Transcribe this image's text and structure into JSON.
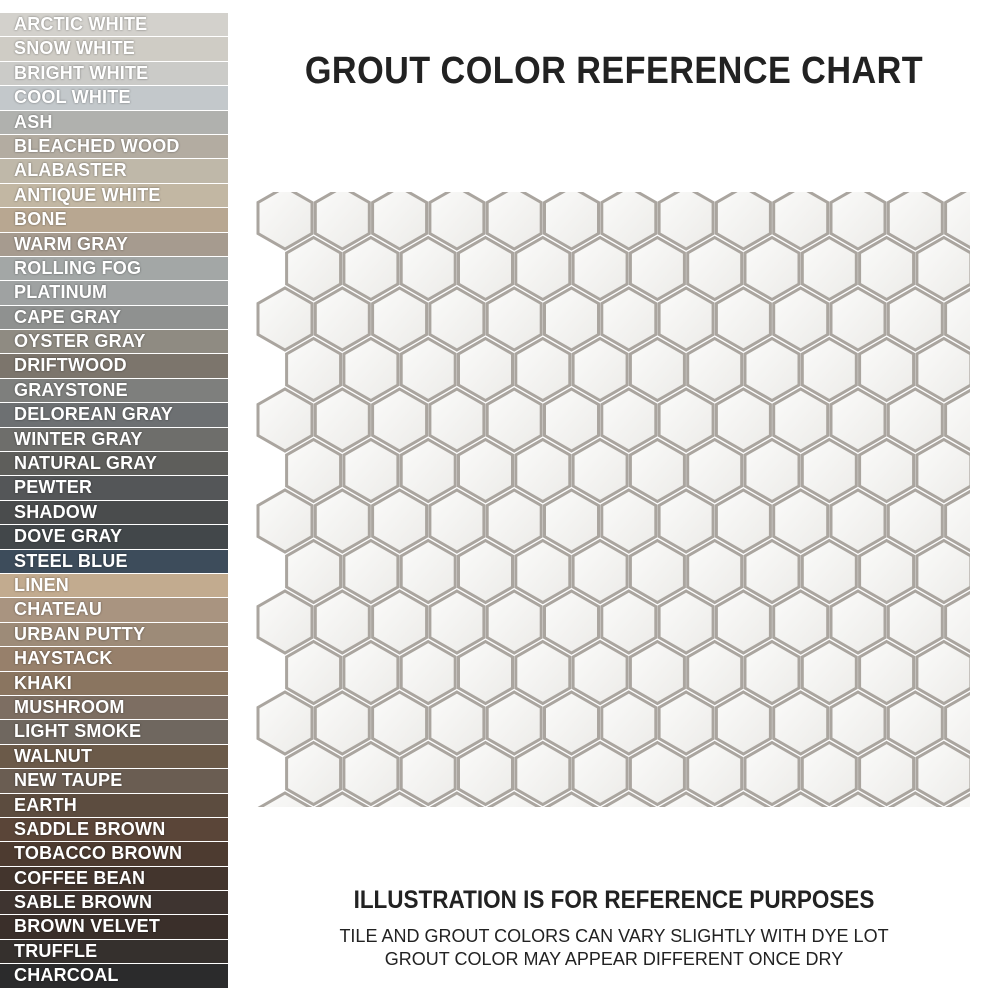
{
  "title": "GROUT COLOR REFERENCE CHART",
  "swatches": [
    {
      "name": "ARCTIC WHITE",
      "color": "#d3d1cc"
    },
    {
      "name": "SNOW WHITE",
      "color": "#cfccc5"
    },
    {
      "name": "BRIGHT WHITE",
      "color": "#cbcbc8"
    },
    {
      "name": "COOL WHITE",
      "color": "#c3c8cb"
    },
    {
      "name": "ASH",
      "color": "#b0b1ae"
    },
    {
      "name": "BLEACHED WOOD",
      "color": "#b3aca1"
    },
    {
      "name": "ALABASTER",
      "color": "#bfb8a9"
    },
    {
      "name": "ANTIQUE WHITE",
      "color": "#c2b7a3"
    },
    {
      "name": "BONE",
      "color": "#b8a791"
    },
    {
      "name": "WARM GRAY",
      "color": "#a69b8f"
    },
    {
      "name": "ROLLING FOG",
      "color": "#a3a7a6"
    },
    {
      "name": "PLATINUM",
      "color": "#9fa2a2"
    },
    {
      "name": "CAPE GRAY",
      "color": "#8f9190"
    },
    {
      "name": "OYSTER GRAY",
      "color": "#8f8b82"
    },
    {
      "name": "DRIFTWOOD",
      "color": "#7c756c"
    },
    {
      "name": "GRAYSTONE",
      "color": "#7e7f7d"
    },
    {
      "name": "DELOREAN GRAY",
      "color": "#6d7072"
    },
    {
      "name": "WINTER GRAY",
      "color": "#6e6e6b"
    },
    {
      "name": "NATURAL GRAY",
      "color": "#5e5e5b"
    },
    {
      "name": "PEWTER",
      "color": "#545658"
    },
    {
      "name": "SHADOW",
      "color": "#4a4c4d"
    },
    {
      "name": "DOVE GRAY",
      "color": "#42474a"
    },
    {
      "name": "STEEL BLUE",
      "color": "#3d4c5b"
    },
    {
      "name": "LINEN",
      "color": "#c2ab8f"
    },
    {
      "name": "CHATEAU",
      "color": "#a99480"
    },
    {
      "name": "URBAN PUTTY",
      "color": "#9d8b78"
    },
    {
      "name": "HAYSTACK",
      "color": "#97806b"
    },
    {
      "name": "KHAKI",
      "color": "#8a7560"
    },
    {
      "name": "MUSHROOM",
      "color": "#7d6e62"
    },
    {
      "name": "LIGHT SMOKE",
      "color": "#6f675f"
    },
    {
      "name": "WALNUT",
      "color": "#6b5a49"
    },
    {
      "name": "NEW TAUPE",
      "color": "#6a5d52"
    },
    {
      "name": "EARTH",
      "color": "#5c4c3f"
    },
    {
      "name": "SADDLE BROWN",
      "color": "#5a4538"
    },
    {
      "name": "TOBACCO BROWN",
      "color": "#4d3b30"
    },
    {
      "name": "COFFEE BEAN",
      "color": "#43352d"
    },
    {
      "name": "SABLE BROWN",
      "color": "#3e3430"
    },
    {
      "name": "BROWN VELVET",
      "color": "#3a2f2a"
    },
    {
      "name": "TRUFFLE",
      "color": "#35302d"
    },
    {
      "name": "CHARCOAL",
      "color": "#2b2b2c"
    }
  ],
  "note": {
    "heading": "ILLUSTRATION IS FOR REFERENCE PURPOSES",
    "lines": [
      "TILE AND GROUT COLORS CAN VARY SLIGHTLY WITH DYE LOT",
      "GROUT COLOR MAY APPEAR DIFFERENT ONCE DRY"
    ]
  }
}
